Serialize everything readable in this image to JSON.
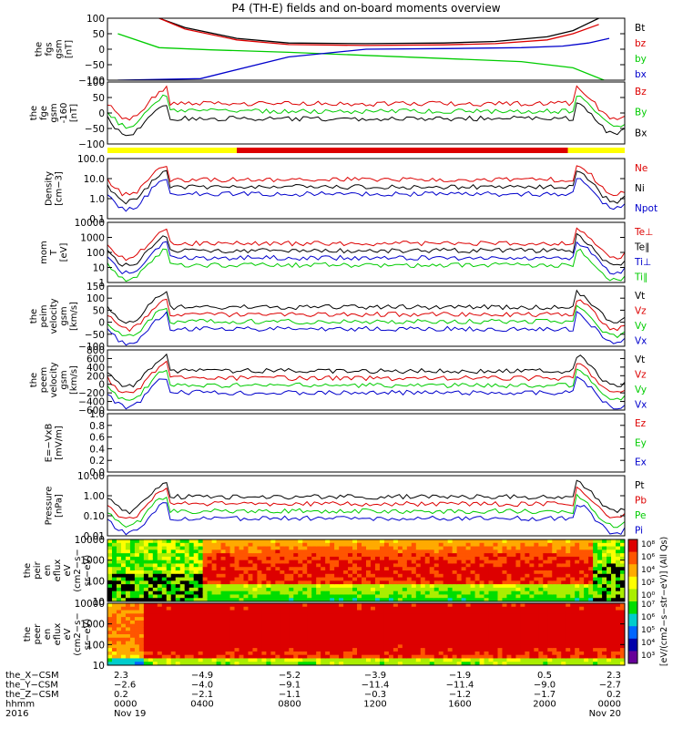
{
  "title": "P4 (TH-E) fields and on-board moments overview",
  "colors": {
    "black": "#000000",
    "red": "#dd0000",
    "green": "#00cc00",
    "blue": "#0000cc",
    "yellow": "#ffff00",
    "bar_red": "#dd0000"
  },
  "chart_data": [
    {
      "id": "fgs",
      "type": "line",
      "ylabel": [
        "the",
        "fgs",
        "gsm",
        "[nT]"
      ],
      "ylim": [
        -100,
        100
      ],
      "yticks": [
        "100",
        "50",
        "0",
        "−50",
        "−100"
      ],
      "legend": [
        {
          "name": "Bt",
          "color": "#000000"
        },
        {
          "name": "bz",
          "color": "#dd0000"
        },
        {
          "name": "by",
          "color": "#00cc00"
        },
        {
          "name": "bx",
          "color": "#0000cc"
        }
      ],
      "series": [
        {
          "name": "Bt",
          "color": "#000000",
          "x": [
            0.1,
            0.15,
            0.25,
            0.35,
            0.5,
            0.65,
            0.75,
            0.85,
            0.9,
            0.95
          ],
          "y": [
            100,
            70,
            35,
            20,
            18,
            20,
            25,
            40,
            60,
            100
          ]
        },
        {
          "name": "bz",
          "color": "#dd0000",
          "x": [
            0.1,
            0.15,
            0.25,
            0.35,
            0.5,
            0.65,
            0.75,
            0.85,
            0.9,
            0.95
          ],
          "y": [
            100,
            65,
            30,
            15,
            12,
            14,
            18,
            30,
            50,
            80
          ]
        },
        {
          "name": "by",
          "color": "#00cc00",
          "x": [
            0.02,
            0.1,
            0.2,
            0.35,
            0.5,
            0.65,
            0.8,
            0.9,
            0.96
          ],
          "y": [
            50,
            5,
            -2,
            -10,
            -20,
            -30,
            -40,
            -60,
            -100
          ]
        },
        {
          "name": "bx",
          "color": "#0000cc",
          "x": [
            0.02,
            0.18,
            0.35,
            0.5,
            0.65,
            0.8,
            0.88,
            0.93,
            0.97
          ],
          "y": [
            -100,
            -95,
            -25,
            0,
            2,
            5,
            10,
            20,
            35
          ]
        }
      ]
    },
    {
      "id": "fge",
      "type": "line",
      "ylabel": [
        "the",
        "fge",
        "gsm",
        "-160",
        "[nT]"
      ],
      "ylim": [
        -120,
        120
      ],
      "yticks": [
        "100",
        "50",
        "0",
        "−50",
        "−100"
      ],
      "legend": [
        {
          "name": "Bz",
          "color": "#dd0000"
        },
        {
          "name": "By",
          "color": "#00cc00"
        },
        {
          "name": "Bx",
          "color": "#000000"
        }
      ]
    },
    {
      "id": "density",
      "type": "line",
      "ylabel": [
        "Density",
        "[cm−3]"
      ],
      "log": true,
      "yticks": [
        "100.0",
        "10.0",
        "1.0",
        "0.1"
      ],
      "legend": [
        {
          "name": "Ne",
          "color": "#dd0000"
        },
        {
          "name": "Ni",
          "color": "#000000"
        },
        {
          "name": "Npot",
          "color": "#0000cc"
        }
      ]
    },
    {
      "id": "temp",
      "type": "line",
      "ylabel": [
        "mom",
        "T",
        "[eV]"
      ],
      "log": true,
      "yticks": [
        "10000",
        "1000",
        "100",
        "10",
        "1"
      ],
      "legend": [
        {
          "name": "Te⊥",
          "color": "#dd0000"
        },
        {
          "name": "Te∥",
          "color": "#000000"
        },
        {
          "name": "Ti⊥",
          "color": "#0000cc"
        },
        {
          "name": "Ti∥",
          "color": "#00cc00"
        }
      ]
    },
    {
      "id": "peim",
      "type": "line",
      "ylabel": [
        "the",
        "peim",
        "velocity",
        "gsm",
        "[km/s]"
      ],
      "yticks": [
        "150",
        "100",
        "50",
        "0",
        "−50",
        "−100"
      ],
      "legend": [
        {
          "name": "Vt",
          "color": "#000000"
        },
        {
          "name": "Vz",
          "color": "#dd0000"
        },
        {
          "name": "Vy",
          "color": "#00cc00"
        },
        {
          "name": "Vx",
          "color": "#0000cc"
        }
      ]
    },
    {
      "id": "peem",
      "type": "line",
      "ylabel": [
        "the",
        "peem",
        "velocity",
        "gsm",
        "[km/s]"
      ],
      "yticks": [
        "800",
        "600",
        "400",
        "200",
        "0",
        "−200",
        "−400",
        "−600"
      ],
      "legend": [
        {
          "name": "Vt",
          "color": "#000000"
        },
        {
          "name": "Vz",
          "color": "#dd0000"
        },
        {
          "name": "Vy",
          "color": "#00cc00"
        },
        {
          "name": "Vx",
          "color": "#0000cc"
        }
      ]
    },
    {
      "id": "efield",
      "type": "line",
      "ylabel": [
        "E=−VxB",
        "[mV/m]"
      ],
      "yticks": [
        "1.0",
        "0.8",
        "0.6",
        "0.4",
        "0.2",
        "0.0"
      ],
      "legend": [
        {
          "name": "Ez",
          "color": "#dd0000"
        },
        {
          "name": "Ey",
          "color": "#00cc00"
        },
        {
          "name": "Ex",
          "color": "#0000cc"
        }
      ]
    },
    {
      "id": "pressure",
      "type": "line",
      "ylabel": [
        "Pressure",
        "[nPa]"
      ],
      "log": true,
      "yticks": [
        "10.00",
        "1.00",
        "0.10",
        "0.01"
      ],
      "legend": [
        {
          "name": "Pt",
          "color": "#000000"
        },
        {
          "name": "Pb",
          "color": "#dd0000"
        },
        {
          "name": "Pe",
          "color": "#00cc00"
        },
        {
          "name": "Pi",
          "color": "#0000cc"
        }
      ]
    },
    {
      "id": "peir",
      "type": "heatmap",
      "ylabel": [
        "the",
        "peir",
        "en",
        "eflux",
        "eV",
        "(cm2−s−",
        "sr−eV)"
      ],
      "yticks": [
        "10000",
        "1000",
        "100",
        "10"
      ]
    },
    {
      "id": "peer",
      "type": "heatmap",
      "ylabel": [
        "the",
        "peer",
        "en",
        "eflux",
        "eV",
        "(cm2−s−",
        "sr−eV)"
      ],
      "yticks": [
        "10000",
        "1000",
        "100",
        "10"
      ]
    }
  ],
  "colorbar": {
    "label": "[eV/(cm2−s−str−eV)] (All Qs)",
    "upper_ticks": [
      "10⁸",
      "10⁶",
      "10⁴",
      "10²",
      "10⁰"
    ],
    "lower_ticks": [
      "10⁷",
      "10⁶",
      "10⁵",
      "10⁴",
      "10³"
    ]
  },
  "xaxis": {
    "rows": [
      {
        "label": "the_X−CSM",
        "values": [
          "2.3",
          "−4.9",
          "−5.2",
          "−3.9",
          "−1.9",
          "0.5",
          "2.3"
        ]
      },
      {
        "label": "the_Y−CSM",
        "values": [
          "−2.6",
          "−4.0",
          "−9.1",
          "−11.4",
          "−11.4",
          "−9.0",
          "−2.7"
        ]
      },
      {
        "label": "the_Z−CSM",
        "values": [
          "0.2",
          "−2.1",
          "−1.1",
          "−0.3",
          "−1.2",
          "−1.7",
          "0.2"
        ]
      },
      {
        "label": "hhmm",
        "values": [
          "0000",
          "0400",
          "0800",
          "1200",
          "1600",
          "2000",
          "0000"
        ]
      },
      {
        "label": "2016",
        "values": [
          "Nov 19",
          "",
          "",
          "",
          "",
          "",
          "Nov 20"
        ]
      }
    ]
  }
}
